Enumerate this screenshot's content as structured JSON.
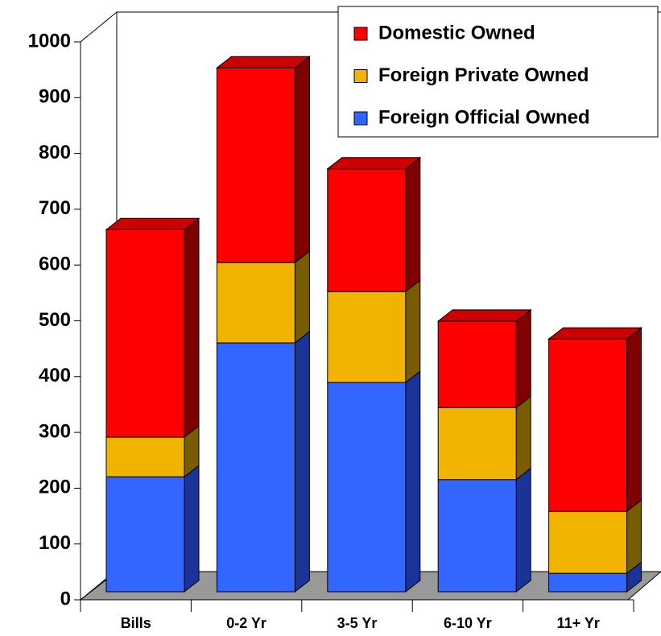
{
  "chart_data": {
    "type": "bar3d_stacked",
    "categories": [
      "Bills",
      "0-2 Yr",
      "3-5 Yr",
      "6-10 Yr",
      "11+ Yr"
    ],
    "series": [
      {
        "name": "Foreign Official Owned",
        "color": "#3366ff",
        "side": "#1a3399",
        "values": [
          206,
          446,
          375,
          201,
          33
        ]
      },
      {
        "name": "Foreign Private Owned",
        "color": "#f0b400",
        "side": "#7a5c00",
        "values": [
          71,
          144,
          163,
          129,
          111
        ]
      },
      {
        "name": "Domestic Owned",
        "color": "#ff0000",
        "side": "#800000",
        "values": [
          372,
          349,
          220,
          155,
          309
        ]
      }
    ],
    "ylim": [
      0,
      1000
    ],
    "yticks": [
      0,
      100,
      200,
      300,
      400,
      500,
      600,
      700,
      800,
      900,
      1000
    ],
    "legend": "top-right"
  }
}
